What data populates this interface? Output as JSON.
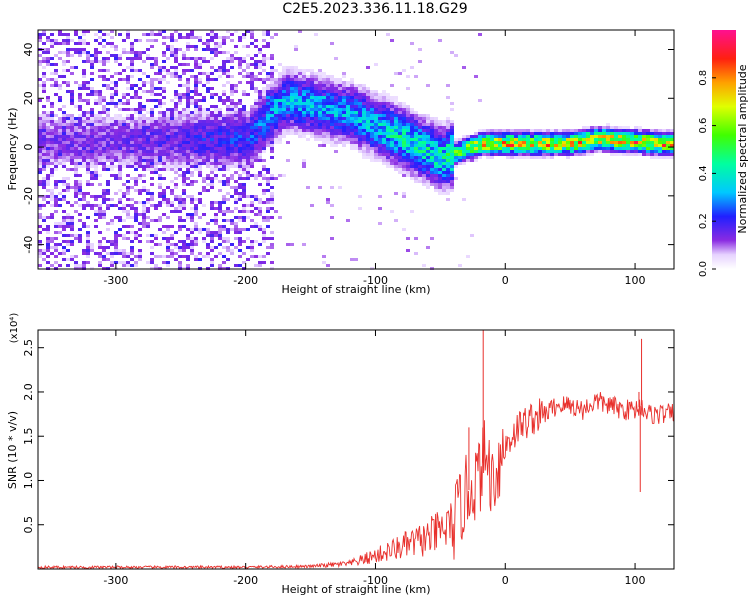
{
  "title": "C2E5.2023.336.11.18.G29",
  "chart_data": [
    {
      "type": "heatmap",
      "xlabel": "Height of straight line (km)",
      "ylabel": "Frequency (Hz)",
      "xlim": [
        -360,
        130
      ],
      "ylim": [
        -50,
        48
      ],
      "xticks": [
        -300,
        -200,
        -100,
        0,
        100
      ],
      "yticks": [
        -40,
        -20,
        0,
        20,
        40
      ],
      "colorbar": {
        "label": "Normalized spectral amplitude",
        "range": [
          0,
          1
        ],
        "ticks": [
          "0.0",
          "0.2",
          "0.4",
          "0.6",
          "0.8"
        ],
        "colormap": "rainbow (white-violet-blue-cyan-green-yellow-orange-red-magenta)"
      },
      "description_points": [
        {
          "x": -300,
          "band_center_hz": 3,
          "amplitude": 0.15
        },
        {
          "x": -200,
          "band_center_hz": 4,
          "amplitude": 0.25
        },
        {
          "x": -170,
          "band_center_hz": 20,
          "amplitude": 0.35
        },
        {
          "x": -120,
          "band_center_hz": 14,
          "amplitude": 0.35
        },
        {
          "x": -80,
          "band_center_hz": 4,
          "amplitude": 0.45
        },
        {
          "x": -50,
          "band_center_hz": -4,
          "amplitude": 0.45
        },
        {
          "x": -20,
          "band_center_hz": 2,
          "amplitude": 0.8
        },
        {
          "x": 0,
          "band_center_hz": 2,
          "amplitude": 0.85
        },
        {
          "x": 50,
          "band_center_hz": 2,
          "amplitude": 0.8
        },
        {
          "x": 70,
          "band_center_hz": 4,
          "amplitude": 0.8
        },
        {
          "x": 120,
          "band_center_hz": 2,
          "amplitude": 0.85
        }
      ]
    },
    {
      "type": "line",
      "xlabel": "Height of straight line (km)",
      "ylabel": "SNR (10 * v/v)",
      "multiplier_label": "(x10⁴)",
      "xlim": [
        -360,
        130
      ],
      "ylim": [
        0,
        2.7
      ],
      "xticks": [
        -300,
        -200,
        -100,
        0,
        100
      ],
      "yticks": [
        "0.5",
        "1.0",
        "1.5",
        "2.0",
        "2.5"
      ],
      "series": [
        {
          "color": "#e8302c",
          "x": [
            -360,
            -300,
            -250,
            -200,
            -150,
            -120,
            -100,
            -80,
            -60,
            -40,
            -30,
            -20,
            -15,
            -10,
            0,
            10,
            20,
            30,
            40,
            50,
            60,
            70,
            80,
            90,
            100,
            105,
            110,
            120,
            130
          ],
          "y": [
            0.02,
            0.02,
            0.02,
            0.02,
            0.03,
            0.06,
            0.15,
            0.25,
            0.35,
            0.5,
            0.85,
            1.05,
            1.3,
            1.0,
            1.4,
            1.6,
            1.7,
            1.75,
            1.85,
            1.85,
            1.8,
            1.9,
            1.85,
            1.8,
            1.8,
            1.85,
            1.75,
            1.75,
            1.75
          ]
        }
      ],
      "spikes": [
        {
          "x": -17,
          "y": 2.7
        },
        {
          "x": -28,
          "y": 1.6
        },
        {
          "x": 103,
          "y": 2.0
        },
        {
          "x": 105,
          "y": 2.6
        },
        {
          "x": 104,
          "y": 0.87
        }
      ]
    }
  ]
}
